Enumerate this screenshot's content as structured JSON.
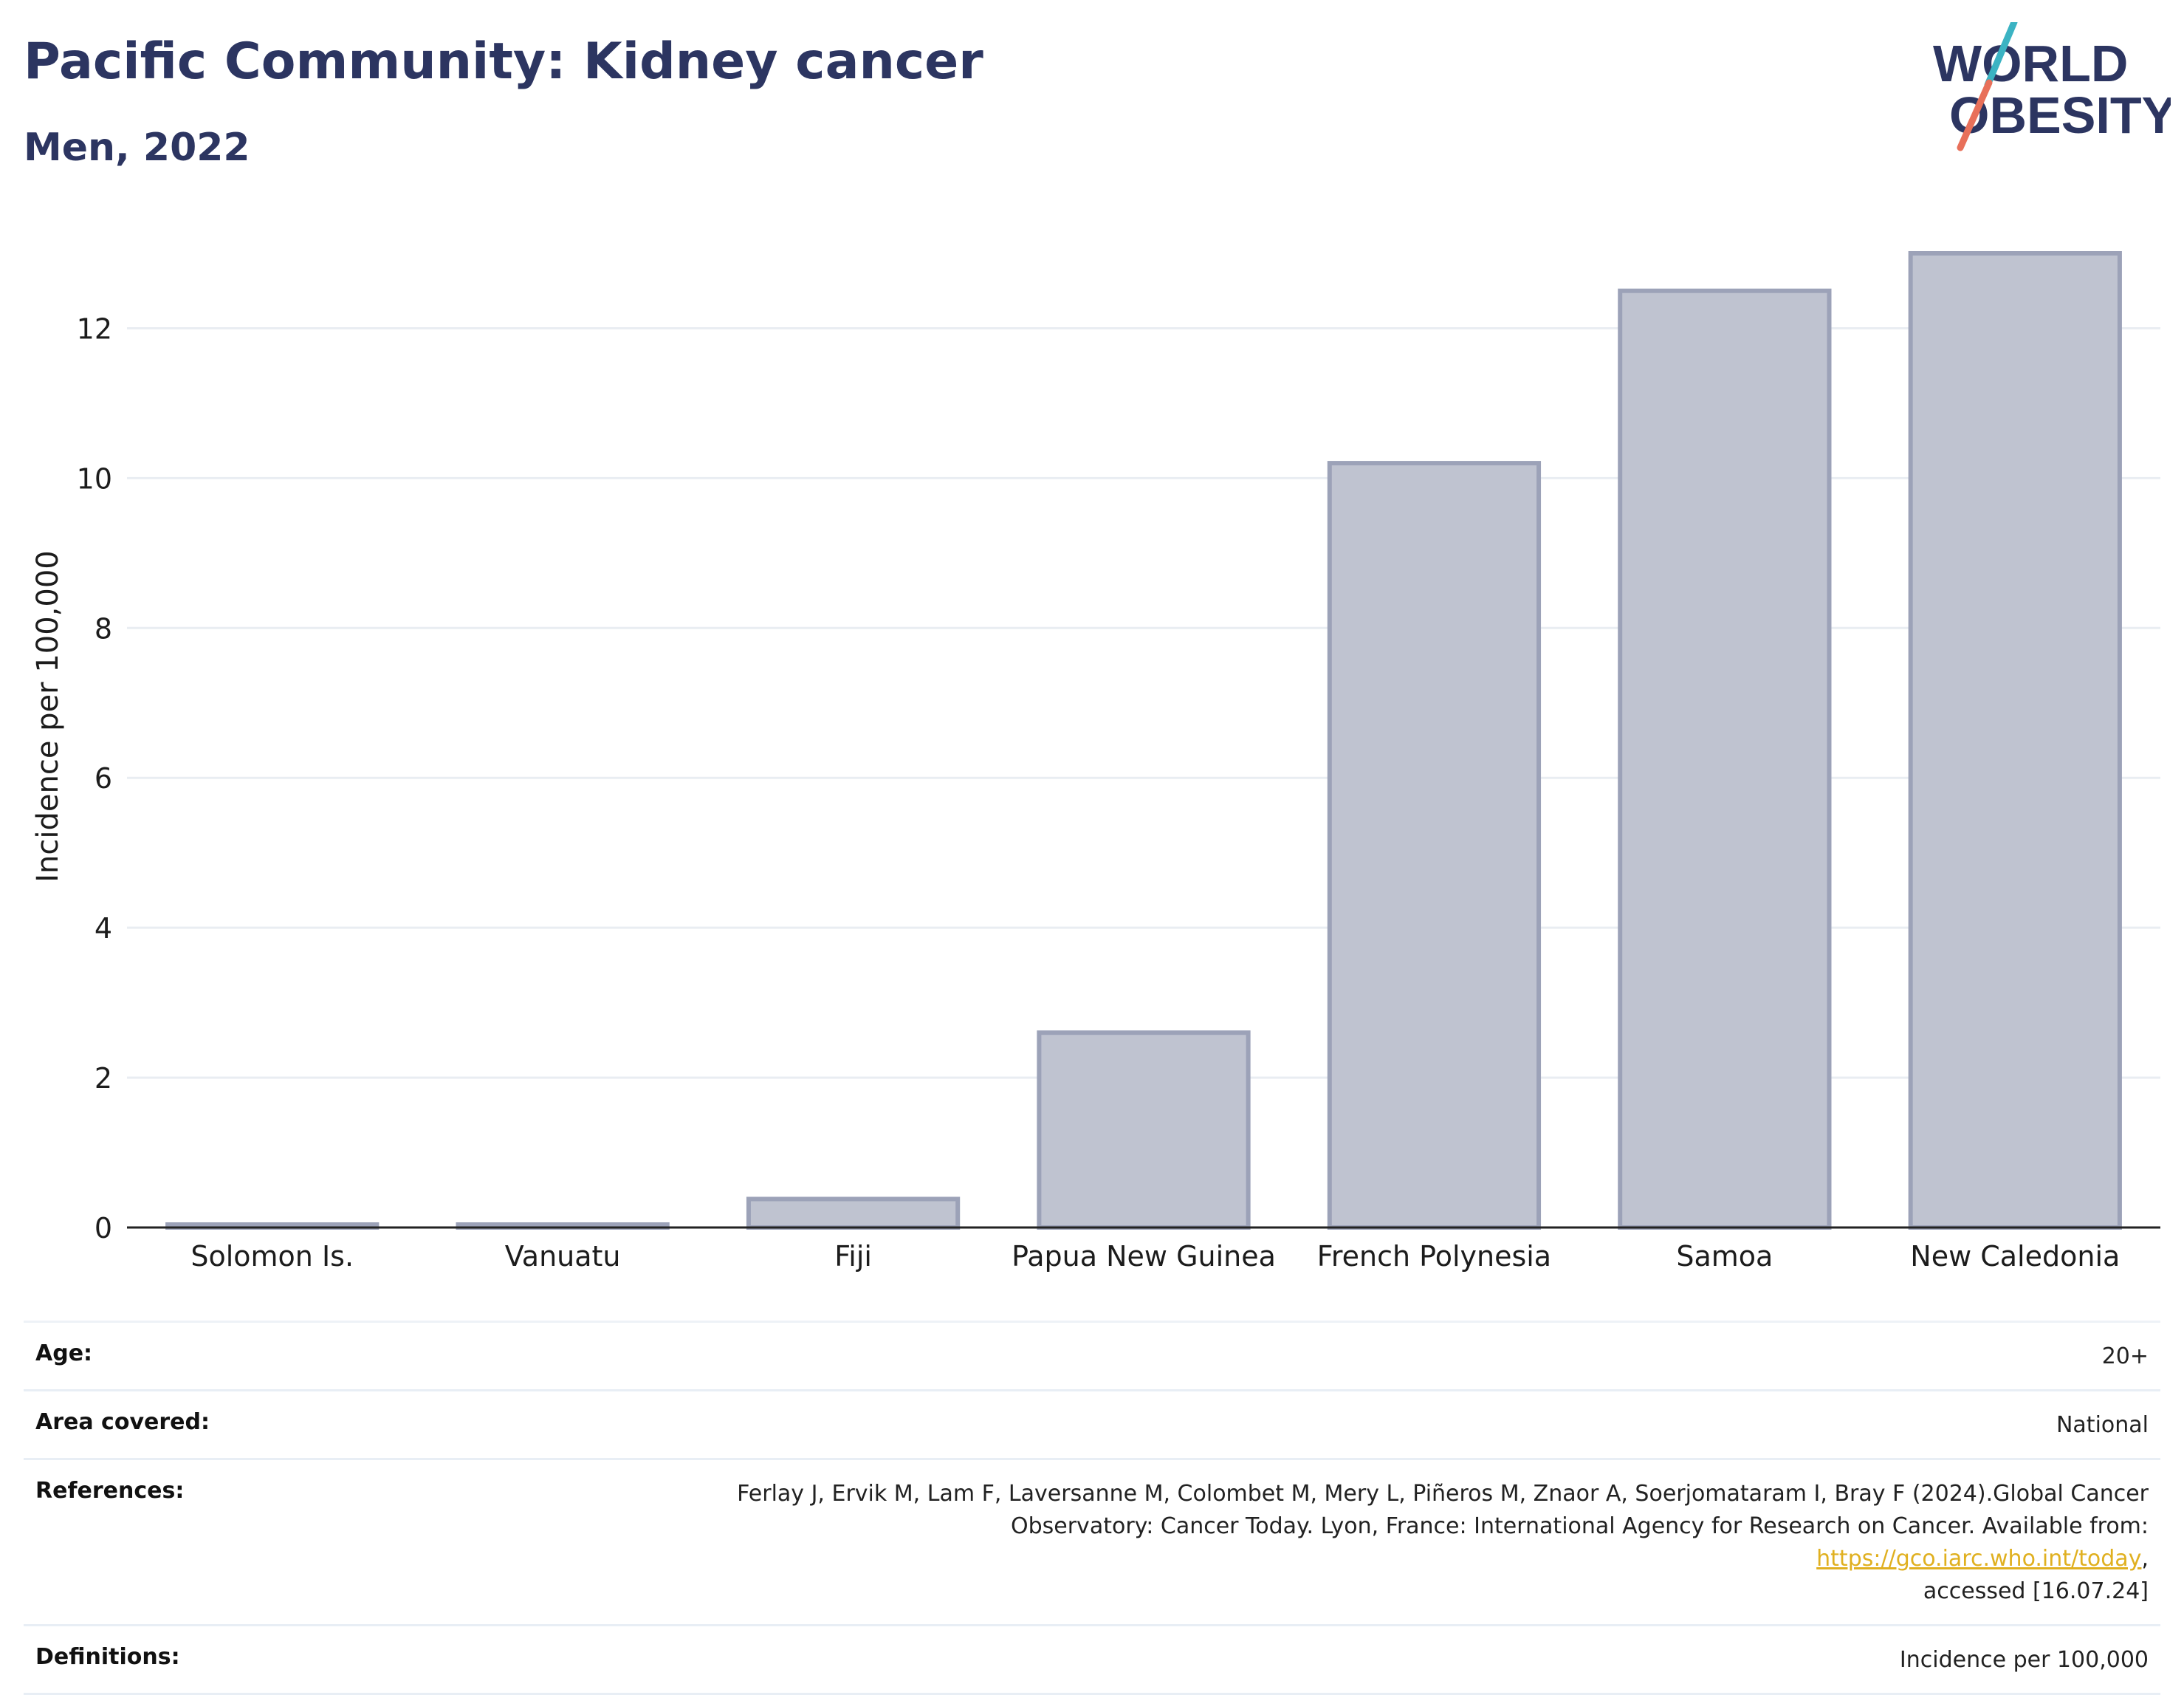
{
  "header": {
    "title": "Pacific Community: Kidney cancer",
    "subtitle": "Men, 2022",
    "logo_text_line1": "WORLD",
    "logo_text_line2": "OBESITY"
  },
  "colors": {
    "title": "#2c3561",
    "bar_fill": "#bfc3d0",
    "bar_stroke": "#9ca2b8",
    "logo_slash_top": "#3bb3c3",
    "logo_slash_bottom": "#e8705a",
    "link": "#e0b020"
  },
  "chart_data": {
    "type": "bar",
    "categories": [
      "Solomon Is.",
      "Vanuatu",
      "Fiji",
      "Papua New Guinea",
      "French Polynesia",
      "Samoa",
      "New Caledonia"
    ],
    "values": [
      0.02,
      0.02,
      0.38,
      2.6,
      10.2,
      12.5,
      13.0
    ],
    "title": "",
    "xlabel": "",
    "ylabel": "Incidence per 100,000",
    "ylim": [
      0,
      13.0
    ],
    "yticks": [
      0,
      2,
      4,
      6,
      8,
      10,
      12
    ],
    "grid": true
  },
  "info": {
    "age_label": "Age:",
    "age_value": "20+",
    "area_label": "Area covered:",
    "area_value": "National",
    "references_label": "References:",
    "references_line1": "Ferlay J, Ervik M, Lam F, Laversanne M, Colombet M, Mery L, Piñeros M, Znaor A, Soerjomataram I, Bray F (2024).Global Cancer",
    "references_line2_prefix": "Observatory: Cancer Today. Lyon, France: International Agency for Research on Cancer. Available from: ",
    "references_link": "https://gco.iarc.who.int/today",
    "references_line2_suffix": ",",
    "references_line3": "accessed [16.07.24]",
    "definitions_label": "Definitions:",
    "definitions_value": "Incidence per 100,000"
  }
}
